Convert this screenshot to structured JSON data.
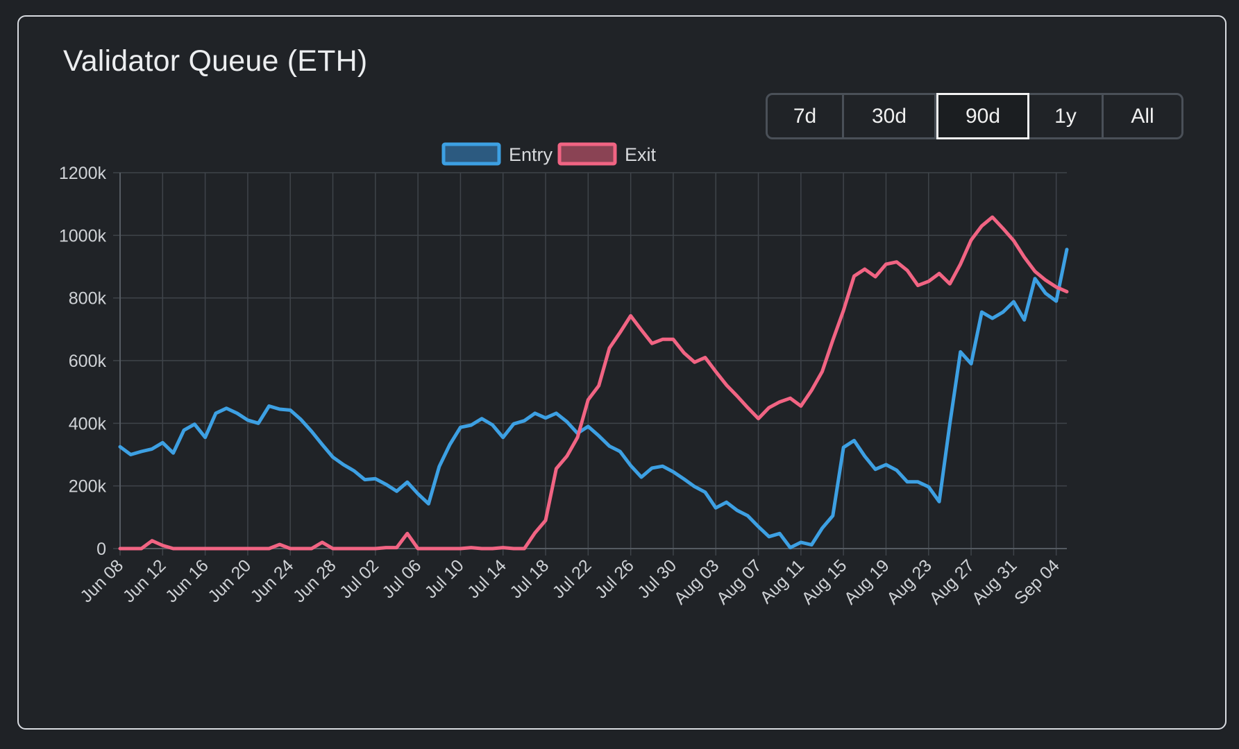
{
  "card": {
    "title": "Validator Queue (ETH)"
  },
  "range_selector": {
    "options": [
      "7d",
      "30d",
      "90d",
      "1y",
      "All"
    ],
    "selected": "90d"
  },
  "colors": {
    "entry": "#3da0e3",
    "exit": "#f16483",
    "grid": "#3f444a",
    "axis_text": "#cfd2d6"
  },
  "chart_data": {
    "type": "line",
    "title": "",
    "xlabel": "",
    "ylabel": "",
    "ylim": [
      0,
      1200
    ],
    "y_ticks": [
      "0",
      "200k",
      "400k",
      "600k",
      "800k",
      "1000k",
      "1200k"
    ],
    "y_tick_values": [
      0,
      200,
      400,
      600,
      800,
      1000,
      1200
    ],
    "x_tick_labels": [
      "Jun 08",
      "Jun 12",
      "Jun 16",
      "Jun 20",
      "Jun 24",
      "Jun 28",
      "Jul 02",
      "Jul 06",
      "Jul 10",
      "Jul 14",
      "Jul 18",
      "Jul 22",
      "Jul 26",
      "Jul 30",
      "Aug 03",
      "Aug 07",
      "Aug 11",
      "Aug 15",
      "Aug 19",
      "Aug 23",
      "Aug 27",
      "Aug 31",
      "Sep 04"
    ],
    "x_start": "Jun 08",
    "x_end": "Sep 05",
    "grid": true,
    "legend_position": "top",
    "series": [
      {
        "name": "Entry",
        "color_key": "entry",
        "values": [
          325,
          300,
          310,
          318,
          338,
          305,
          378,
          397,
          355,
          432,
          448,
          432,
          410,
          400,
          455,
          445,
          442,
          412,
          374,
          332,
          292,
          268,
          248,
          220,
          223,
          205,
          183,
          212,
          175,
          143,
          262,
          332,
          387,
          394,
          415,
          395,
          355,
          398,
          408,
          432,
          417,
          432,
          405,
          368,
          390,
          360,
          327,
          310,
          265,
          228,
          257,
          263,
          245,
          222,
          198,
          180,
          130,
          148,
          122,
          105,
          70,
          38,
          48,
          3,
          20,
          12,
          65,
          105,
          323,
          345,
          295,
          253,
          268,
          250,
          213,
          213,
          197,
          150,
          398,
          628,
          590,
          755,
          735,
          755,
          788,
          730,
          862,
          815,
          790,
          955
        ]
      },
      {
        "name": "Exit",
        "color_key": "exit",
        "values": [
          0,
          0,
          0,
          25,
          10,
          0,
          0,
          0,
          0,
          0,
          0,
          0,
          0,
          0,
          0,
          13,
          0,
          0,
          0,
          20,
          0,
          0,
          0,
          0,
          0,
          3,
          3,
          48,
          0,
          0,
          0,
          0,
          0,
          3,
          0,
          0,
          3,
          0,
          0,
          50,
          90,
          255,
          295,
          355,
          475,
          520,
          640,
          690,
          743,
          698,
          655,
          668,
          668,
          625,
          595,
          610,
          565,
          522,
          487,
          450,
          415,
          450,
          468,
          480,
          455,
          505,
          565,
          665,
          760,
          870,
          892,
          868,
          908,
          915,
          888,
          840,
          853,
          878,
          845,
          908,
          985,
          1030,
          1058,
          1022,
          983,
          930,
          885,
          857,
          835,
          820
        ]
      }
    ]
  }
}
